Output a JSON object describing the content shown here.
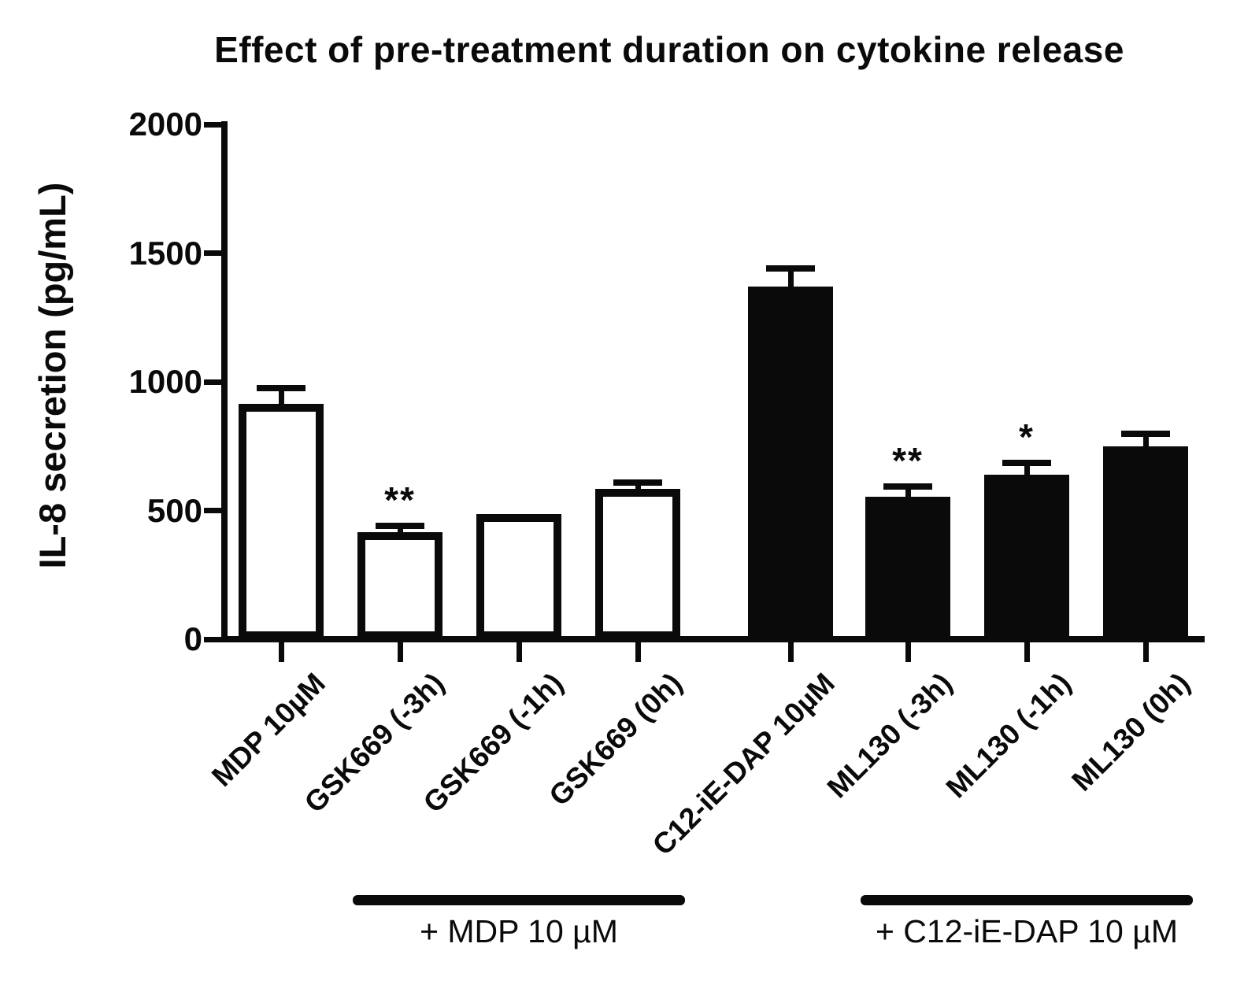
{
  "chart_data": {
    "type": "bar",
    "title": "Effect of pre-treatment duration on cytokine release",
    "xlabel": "",
    "ylabel": "IL-8 secretion (pg/mL)",
    "ylim": [
      0,
      2000
    ],
    "yticks": [
      0,
      500,
      1000,
      1500,
      2000
    ],
    "grid": false,
    "legend": "none",
    "categories": [
      "MDP 10µM",
      "GSK669 (-3h)",
      "GSK669 (-1h)",
      "GSK669 (0h)",
      "C12-iE-DAP 10µM",
      "ML130 (-3h)",
      "ML130 (-1h)",
      "ML130 (0h)"
    ],
    "series": [
      {
        "name": "IL-8 secretion (pg/mL)",
        "values": [
          915,
          415,
          485,
          585,
          1370,
          555,
          640,
          750
        ],
        "errors_plus": [
          62,
          25,
          0,
          25,
          70,
          38,
          45,
          48
        ]
      }
    ],
    "significance_marks": [
      "",
      "**",
      "",
      "",
      "",
      "**",
      "*",
      ""
    ],
    "bar_styles": [
      "open",
      "open",
      "open",
      "open",
      "solid",
      "solid",
      "solid",
      "solid"
    ],
    "group_annotations": [
      {
        "label": "+ MDP 10 µM",
        "from_bar": 1,
        "to_bar": 3
      },
      {
        "label": "+ C12-iE-DAP 10 µM",
        "from_bar": 5,
        "to_bar": 7
      }
    ]
  },
  "colors": {
    "foreground": "#0a0a0a",
    "open_bar_fill": "#ffffff",
    "solid_bar_fill": "#0a0a0a",
    "background": "#ffffff"
  }
}
